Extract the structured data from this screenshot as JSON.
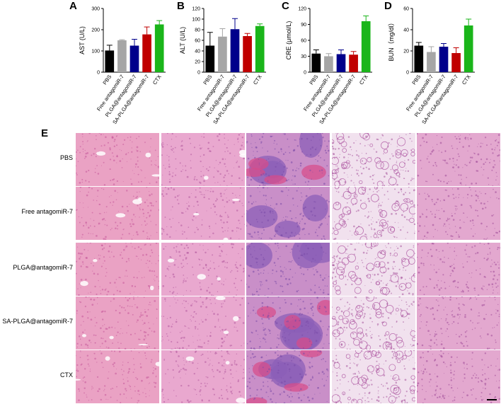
{
  "panels": {
    "A": "A",
    "B": "B",
    "C": "C",
    "D": "D",
    "E": "E"
  },
  "chart_data": [
    {
      "type": "bar",
      "ylabel": "AST (U/L)",
      "categories": [
        "PBS",
        "Free antagomiR-7",
        "PLGA@antagomiR-7",
        "SA-PLGA@antagomiR-7",
        "CTX"
      ],
      "values": [
        102,
        150,
        125,
        178,
        225
      ],
      "errors": [
        25,
        3,
        30,
        35,
        18
      ],
      "ylim": [
        0,
        300
      ],
      "yticks": [
        0,
        100,
        200,
        300
      ],
      "colors": [
        "#000000",
        "#a6a6a6",
        "#00008b",
        "#c00000",
        "#1ab51a"
      ]
    },
    {
      "type": "bar",
      "ylabel": "ALT (U/L)",
      "categories": [
        "PBS",
        "Free antagomiR-7",
        "PLGA@antagomiR-7",
        "SA-PLGA@antagomiR-7",
        "CTX"
      ],
      "values": [
        50,
        67,
        81,
        68,
        87
      ],
      "errors": [
        25,
        15,
        20,
        5,
        4
      ],
      "ylim": [
        0,
        120
      ],
      "yticks": [
        0,
        20,
        40,
        60,
        80,
        100,
        120
      ],
      "colors": [
        "#000000",
        "#a6a6a6",
        "#00008b",
        "#c00000",
        "#1ab51a"
      ]
    },
    {
      "type": "bar",
      "ylabel": "CRE (μmol/L)",
      "categories": [
        "PBS",
        "Free antagomiR-7",
        "PLGA@antagomiR-7",
        "SA-PLGA@antagomiR-7",
        "CTX"
      ],
      "values": [
        35,
        30,
        34,
        33,
        96
      ],
      "errors": [
        7,
        5,
        8,
        6,
        10
      ],
      "ylim": [
        0,
        120
      ],
      "yticks": [
        0,
        30,
        60,
        90,
        120
      ],
      "colors": [
        "#000000",
        "#a6a6a6",
        "#00008b",
        "#c00000",
        "#1ab51a"
      ]
    },
    {
      "type": "bar",
      "ylabel": "BUN（mg/dl）",
      "categories": [
        "PBS",
        "Free antagomiR-7",
        "PLGA@antagomiR-7",
        "SA-PLGA@antagomiR-7",
        "CTX"
      ],
      "values": [
        25,
        19,
        24,
        18,
        44
      ],
      "errors": [
        3,
        5,
        3,
        5,
        6
      ],
      "ylim": [
        0,
        60
      ],
      "yticks": [
        0,
        20,
        40,
        60
      ],
      "colors": [
        "#000000",
        "#a6a6a6",
        "#00008b",
        "#c00000",
        "#1ab51a"
      ]
    }
  ],
  "histology": {
    "rows": [
      "PBS",
      "Free antagomiR-7",
      "PLGA@antagomiR-7",
      "SA-PLGA@antagomiR-7",
      "CTX"
    ],
    "tissue_palettes": [
      {
        "bg": "#eaa2c4",
        "fg": "#c4579a"
      },
      {
        "bg": "#e9a8cf",
        "fg": "#b2589f"
      },
      {
        "bg": "#c98fc8",
        "fg": "#7a4aa8"
      },
      {
        "bg": "#f1e1ee",
        "fg": "#a8579e"
      },
      {
        "bg": "#e3a8cf",
        "fg": "#a14b99"
      }
    ]
  }
}
